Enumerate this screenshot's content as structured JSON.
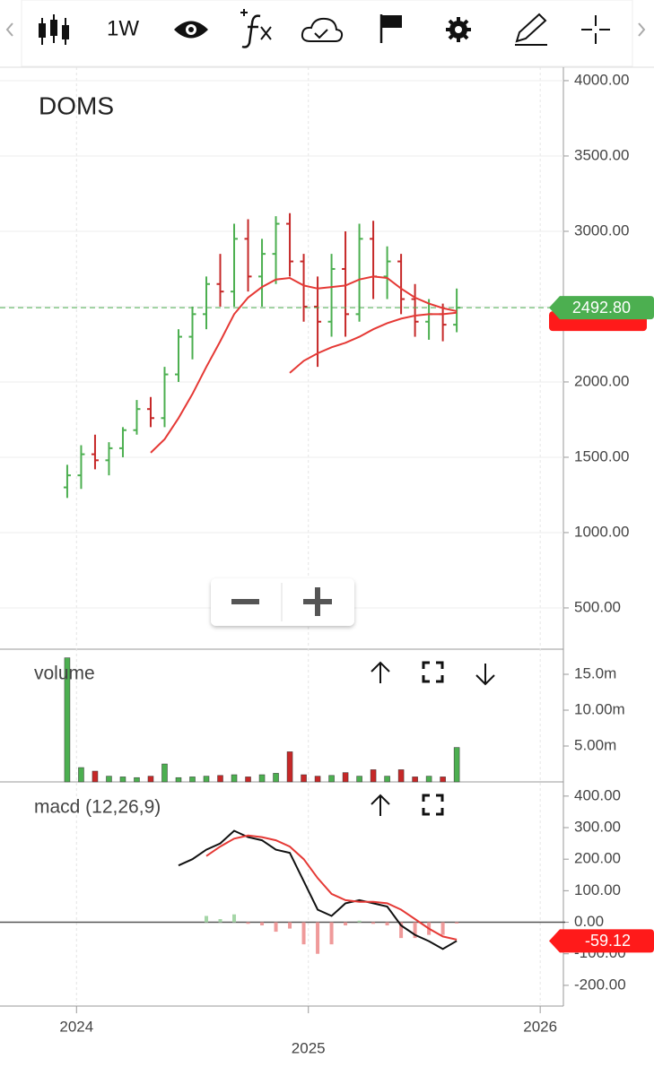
{
  "toolbar": {
    "interval": "1W"
  },
  "chart_data": [
    {
      "type": "ohlc",
      "title": "DOMS",
      "x": [
        2023.96,
        2024.02,
        2024.08,
        2024.14,
        2024.2,
        2024.26,
        2024.32,
        2024.38,
        2024.44,
        2024.5,
        2024.56,
        2024.62,
        2024.68,
        2024.74,
        2024.8,
        2024.86,
        2024.92,
        2024.98,
        2025.04,
        2025.1,
        2025.16,
        2025.22,
        2025.28,
        2025.34,
        2025.4,
        2025.46,
        2025.52,
        2025.58,
        2025.64
      ],
      "open": [
        1300,
        1380,
        1520,
        1480,
        1560,
        1680,
        1820,
        1760,
        2050,
        2300,
        2450,
        2650,
        2600,
        2950,
        2700,
        2850,
        3050,
        2800,
        2500,
        2400,
        2750,
        2450,
        2950,
        2700,
        2800,
        2550,
        2400,
        2450,
        2380
      ],
      "high": [
        1450,
        1580,
        1650,
        1600,
        1700,
        1880,
        1900,
        2100,
        2350,
        2500,
        2700,
        2850,
        3050,
        3080,
        2950,
        3100,
        3120,
        2850,
        2700,
        2850,
        3000,
        3050,
        3070,
        2900,
        2850,
        2650,
        2550,
        2520,
        2620
      ],
      "low": [
        1230,
        1290,
        1420,
        1380,
        1500,
        1650,
        1700,
        1700,
        2000,
        2150,
        2350,
        2500,
        2500,
        2600,
        2500,
        2650,
        2700,
        2400,
        2100,
        2300,
        2300,
        2400,
        2550,
        2550,
        2450,
        2300,
        2280,
        2270,
        2330
      ],
      "close": [
        1380,
        1520,
        1480,
        1560,
        1680,
        1820,
        1760,
        2050,
        2300,
        2450,
        2650,
        2600,
        2950,
        2700,
        2850,
        3050,
        2800,
        2500,
        2400,
        2750,
        2450,
        2950,
        2700,
        2800,
        2550,
        2400,
        2450,
        2380,
        2492.8
      ],
      "value_labels": [
        null,
        null,
        null,
        null,
        null,
        null,
        null,
        null,
        null,
        null,
        null,
        null,
        null,
        null,
        null,
        null,
        null,
        null,
        null,
        null,
        null,
        null,
        null,
        null,
        null,
        null,
        null,
        null,
        "2492.80"
      ],
      "up_color": "#4caf50",
      "down_color": "#c62828",
      "series": [
        {
          "color": "#e53935",
          "values": [
            null,
            null,
            null,
            null,
            null,
            null,
            1530,
            1620,
            1760,
            1920,
            2100,
            2270,
            2450,
            2560,
            2630,
            2680,
            2690,
            2640,
            2620,
            2630,
            2640,
            2680,
            2700,
            2690,
            2620,
            2560,
            2520,
            2490,
            2470
          ]
        },
        {
          "color": "#e53935",
          "values": [
            null,
            null,
            null,
            null,
            null,
            null,
            null,
            null,
            null,
            null,
            null,
            null,
            null,
            null,
            null,
            null,
            2060,
            2140,
            2190,
            2230,
            2260,
            2300,
            2350,
            2390,
            2420,
            2440,
            2450,
            2450,
            2460
          ]
        }
      ],
      "xlim": [
        2023.67,
        2026.1
      ],
      "ylim": [
        226,
        4089
      ],
      "yticks": [
        {
          "value": 500,
          "label": "500.00"
        },
        {
          "value": 1000,
          "label": "1000.00"
        },
        {
          "value": 1500,
          "label": "1500.00"
        },
        {
          "value": 2000,
          "label": "2000.00"
        },
        {
          "value": 2500,
          "label": "2500.00"
        },
        {
          "value": 3000,
          "label": "3000.00"
        },
        {
          "value": 3500,
          "label": "3500.00"
        },
        {
          "value": 4000,
          "label": "4000.00"
        }
      ],
      "grid": true
    },
    {
      "type": "bar",
      "title": "volume",
      "x": [
        2023.96,
        2024.02,
        2024.08,
        2024.14,
        2024.2,
        2024.26,
        2024.32,
        2024.38,
        2024.44,
        2024.5,
        2024.56,
        2024.62,
        2024.68,
        2024.74,
        2024.8,
        2024.86,
        2024.92,
        2024.98,
        2025.04,
        2025.1,
        2025.16,
        2025.22,
        2025.28,
        2025.34,
        2025.4,
        2025.46,
        2025.52,
        2025.58,
        2025.64
      ],
      "values": [
        17.3,
        2.0,
        1.5,
        0.8,
        0.7,
        0.6,
        0.8,
        2.5,
        0.6,
        0.7,
        0.8,
        0.9,
        1.0,
        0.7,
        1.0,
        1.2,
        4.2,
        1.0,
        0.8,
        0.9,
        1.3,
        0.8,
        1.7,
        0.8,
        1.7,
        0.7,
        0.8,
        0.7,
        4.8
      ],
      "xlim": [
        2023.67,
        2026.1
      ],
      "ylim": [
        0,
        18.5
      ],
      "yticks": [
        {
          "value": 5,
          "label": "5.00m"
        },
        {
          "value": 10,
          "label": "10.00m"
        },
        {
          "value": 15,
          "label": "15.0m"
        }
      ]
    },
    {
      "type": "macd",
      "title": "macd (12,26,9)",
      "x": [
        2023.96,
        2024.02,
        2024.08,
        2024.14,
        2024.2,
        2024.26,
        2024.32,
        2024.38,
        2024.44,
        2024.5,
        2024.56,
        2024.62,
        2024.68,
        2024.74,
        2024.8,
        2024.86,
        2024.92,
        2024.98,
        2025.04,
        2025.1,
        2025.16,
        2025.22,
        2025.28,
        2025.34,
        2025.4,
        2025.46,
        2025.52,
        2025.58,
        2025.64
      ],
      "series": [
        {
          "color": "#111111",
          "values": [
            null,
            null,
            null,
            null,
            null,
            null,
            null,
            null,
            180,
            200,
            230,
            250,
            290,
            270,
            260,
            230,
            220,
            130,
            40,
            20,
            60,
            70,
            60,
            50,
            -10,
            -40,
            -60,
            -85,
            -59.12
          ],
          "value_labels": [
            null,
            null,
            null,
            null,
            null,
            null,
            null,
            null,
            null,
            null,
            null,
            null,
            null,
            null,
            null,
            null,
            null,
            null,
            null,
            null,
            null,
            null,
            null,
            null,
            null,
            null,
            null,
            null,
            "-59.12"
          ]
        },
        {
          "color": "#e53935",
          "values": [
            null,
            null,
            null,
            null,
            null,
            null,
            null,
            null,
            null,
            null,
            210,
            240,
            265,
            275,
            270,
            260,
            240,
            200,
            140,
            90,
            70,
            65,
            65,
            60,
            40,
            10,
            -20,
            -45,
            -55
          ]
        }
      ],
      "histogram": [
        null,
        null,
        null,
        null,
        null,
        null,
        null,
        null,
        null,
        null,
        20,
        10,
        25,
        -5,
        -10,
        -30,
        -20,
        -70,
        -100,
        -70,
        -10,
        5,
        -5,
        -10,
        -50,
        -50,
        -40,
        -40,
        -4
      ],
      "baseline": 0,
      "xlim": [
        2023.67,
        2026.1
      ],
      "ylim": [
        -260,
        445
      ],
      "yticks": [
        {
          "value": -200,
          "label": "-200.00"
        },
        {
          "value": -100,
          "label": "-100.00"
        },
        {
          "value": 0,
          "label": "0.00"
        },
        {
          "value": 100,
          "label": "100.00"
        },
        {
          "value": 200,
          "label": "200.00"
        },
        {
          "value": 300,
          "label": "300.00"
        },
        {
          "value": 400,
          "label": "400.00"
        }
      ],
      "xticks": [
        2024,
        2025,
        2026
      ]
    }
  ]
}
